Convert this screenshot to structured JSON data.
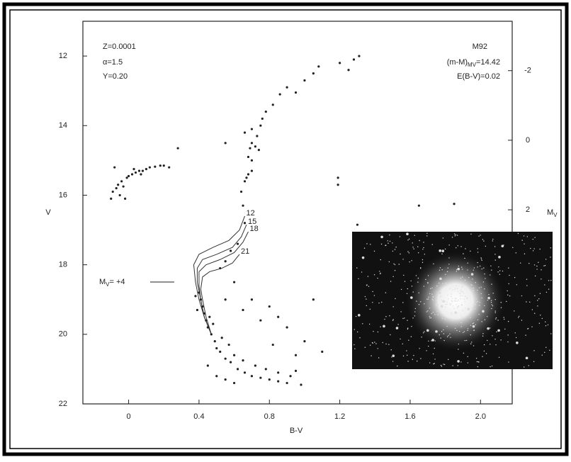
{
  "chart_data": {
    "type": "scatter",
    "xlabel": "B-V",
    "ylabel": "V",
    "y2label": {
      "text": "M",
      "sub": "V"
    },
    "xlim": [
      -0.26,
      2.18
    ],
    "ylim": [
      22,
      11
    ],
    "y2lim": [
      7.58,
      -3.42
    ],
    "xticks": [
      0,
      0.4,
      0.8,
      1.2,
      1.6,
      {
        "value": 2,
        "label": "2.0"
      }
    ],
    "yticks": [
      12,
      14,
      16,
      18,
      20,
      22
    ],
    "y2ticks": [
      -2,
      0,
      2
    ],
    "color": "#222222",
    "x": [
      -0.1,
      -0.09,
      -0.07,
      -0.06,
      -0.04,
      -0.03,
      -0.01,
      0.0,
      0.02,
      0.04,
      0.06,
      0.08,
      0.1,
      0.12,
      0.15,
      0.18,
      0.2,
      0.23,
      -0.05,
      -0.02,
      0.03,
      0.07,
      -0.08,
      0.66,
      0.65,
      0.64,
      0.67,
      0.7,
      0.72,
      0.73,
      0.75,
      0.76,
      0.78,
      0.82,
      0.86,
      0.9,
      0.95,
      1.0,
      1.05,
      1.08,
      1.2,
      1.25,
      1.28,
      1.31,
      0.66,
      0.68,
      0.7,
      0.68,
      0.7,
      0.66,
      0.7,
      0.74,
      0.69,
      0.55,
      0.28,
      1.19,
      1.19,
      1.3,
      1.65,
      1.85,
      0.62,
      0.58,
      0.55,
      0.52,
      0.6,
      0.55,
      0.65,
      0.4,
      0.41,
      0.42,
      0.43,
      0.44,
      0.45,
      0.47,
      0.49,
      0.5,
      0.52,
      0.55,
      0.58,
      0.62,
      0.66,
      0.7,
      0.75,
      0.8,
      0.85,
      0.9,
      0.98,
      0.38,
      0.39,
      0.46,
      0.48,
      0.53,
      0.57,
      0.6,
      0.65,
      0.72,
      0.78,
      0.85,
      0.92,
      0.95,
      0.55,
      0.6,
      0.5,
      0.45,
      0.7,
      0.8,
      0.9,
      1.0,
      1.1,
      0.75,
      0.85,
      1.05,
      0.95,
      0.82
    ],
    "values": [
      16.1,
      15.9,
      15.8,
      15.7,
      15.6,
      15.75,
      15.5,
      15.45,
      15.4,
      15.35,
      15.3,
      15.3,
      15.25,
      15.2,
      15.18,
      15.15,
      15.15,
      15.2,
      16.0,
      16.1,
      15.25,
      15.4,
      15.2,
      16.8,
      16.3,
      15.9,
      15.5,
      15.0,
      14.6,
      14.3,
      14.0,
      13.8,
      13.6,
      13.4,
      13.1,
      12.9,
      13.05,
      12.7,
      12.5,
      12.3,
      12.2,
      12.4,
      12.1,
      12.0,
      15.6,
      15.4,
      15.3,
      14.9,
      14.5,
      14.2,
      14.1,
      14.7,
      14.65,
      14.5,
      14.65,
      15.5,
      15.7,
      16.85,
      16.3,
      16.25,
      17.4,
      17.6,
      17.9,
      18.1,
      18.5,
      19.0,
      19.3,
      18.8,
      19.0,
      19.2,
      19.4,
      19.6,
      19.8,
      20.0,
      20.2,
      20.4,
      20.5,
      20.7,
      20.8,
      21.0,
      21.1,
      21.2,
      21.25,
      21.3,
      21.35,
      21.4,
      21.45,
      18.9,
      19.3,
      19.5,
      19.7,
      20.1,
      20.3,
      20.6,
      20.75,
      20.9,
      21.0,
      21.1,
      21.2,
      21.05,
      21.3,
      21.4,
      21.2,
      20.9,
      19.0,
      19.2,
      19.8,
      20.2,
      20.5,
      19.6,
      19.5,
      19.0,
      20.6,
      20.3
    ],
    "isochrones": [
      {
        "name": "12",
        "x": [
          0.47,
          0.43,
          0.4,
          0.38,
          0.37,
          0.4,
          0.48,
          0.57,
          0.63,
          0.66
        ],
        "values": [
          20.0,
          19.5,
          19.0,
          18.5,
          18.0,
          17.7,
          17.5,
          17.3,
          17.0,
          16.6
        ]
      },
      {
        "name": "15",
        "x": [
          0.47,
          0.43,
          0.41,
          0.39,
          0.39,
          0.42,
          0.5,
          0.59,
          0.64,
          0.67
        ],
        "values": [
          20.0,
          19.5,
          19.0,
          18.5,
          18.1,
          17.85,
          17.7,
          17.5,
          17.2,
          16.85
        ]
      },
      {
        "name": "18",
        "x": [
          0.47,
          0.43,
          0.41,
          0.4,
          0.4,
          0.44,
          0.52,
          0.6,
          0.65,
          0.68
        ],
        "values": [
          20.0,
          19.5,
          19.0,
          18.6,
          18.2,
          18.0,
          17.85,
          17.65,
          17.35,
          17.05
        ]
      },
      {
        "name": "21",
        "x": [
          0.47,
          0.44,
          0.42,
          0.41,
          0.42,
          0.46,
          0.53,
          0.59,
          0.63
        ],
        "values": [
          20.0,
          19.5,
          19.0,
          18.7,
          18.35,
          18.2,
          18.1,
          17.95,
          17.7
        ]
      }
    ],
    "annotations": [
      {
        "text": "Z=0.0001"
      },
      {
        "text": "α=1.5"
      },
      {
        "text": "Y=0.20"
      },
      {
        "text": "M92"
      },
      {
        "text": "(m-M)",
        "sub": "MV",
        "tail": "=14.42"
      },
      {
        "text": "E(B-V)=0.02"
      },
      {
        "text": "M",
        "sub": "V",
        "tail": "= +4"
      }
    ]
  }
}
